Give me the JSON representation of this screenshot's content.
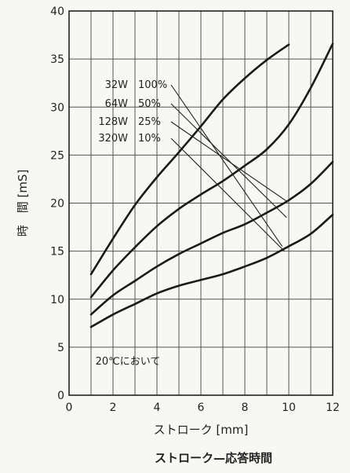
{
  "chart_data": {
    "type": "line",
    "title": "ストローク—応答時間",
    "xlabel": "ストローク [mm]",
    "ylabel": "時　間 [mS]",
    "xlim": [
      0,
      12
    ],
    "ylim": [
      0,
      40
    ],
    "x_ticks": [
      0,
      2,
      4,
      6,
      8,
      10,
      12
    ],
    "y_ticks": [
      0,
      5,
      10,
      15,
      20,
      25,
      30,
      35,
      40
    ],
    "grid": true,
    "annotation": "20℃において",
    "legend_rows": [
      {
        "watt": "32W",
        "pct": "100%"
      },
      {
        "watt": "64W",
        "pct": "50%"
      },
      {
        "watt": "128W",
        "pct": "25%"
      },
      {
        "watt": "320W",
        "pct": "10%"
      }
    ],
    "leaders": [
      {
        "from_label": 0,
        "to": [
          9.7,
          15.5
        ]
      },
      {
        "from_label": 1,
        "to": [
          9.9,
          18.5
        ]
      },
      {
        "from_label": 2,
        "to": [
          9.9,
          20.2
        ]
      },
      {
        "from_label": 3,
        "to": [
          9.8,
          15.0
        ]
      }
    ],
    "series": [
      {
        "label_index": 0,
        "x": [
          1,
          2,
          3,
          4,
          5,
          6,
          7,
          8,
          9,
          10
        ],
        "y": [
          12.6,
          16.3,
          19.8,
          22.7,
          25.3,
          28.0,
          30.8,
          33.0,
          34.9,
          36.5
        ]
      },
      {
        "label_index": 1,
        "x": [
          1,
          2,
          3,
          4,
          5,
          6,
          7,
          8,
          9,
          10,
          11,
          12
        ],
        "y": [
          10.2,
          13.0,
          15.4,
          17.6,
          19.4,
          20.9,
          22.3,
          23.9,
          25.6,
          28.2,
          32.0,
          36.6
        ]
      },
      {
        "label_index": 2,
        "x": [
          1,
          2,
          3,
          4,
          5,
          6,
          7,
          8,
          9,
          10,
          11,
          12
        ],
        "y": [
          8.4,
          10.4,
          11.9,
          13.4,
          14.7,
          15.8,
          16.9,
          17.8,
          19.0,
          20.3,
          22.0,
          24.3
        ]
      },
      {
        "label_index": 3,
        "x": [
          1,
          2,
          3,
          4,
          5,
          6,
          7,
          8,
          9,
          10,
          11,
          12
        ],
        "y": [
          7.1,
          8.4,
          9.5,
          10.6,
          11.4,
          12.0,
          12.6,
          13.4,
          14.3,
          15.5,
          16.8,
          18.8
        ]
      }
    ]
  }
}
